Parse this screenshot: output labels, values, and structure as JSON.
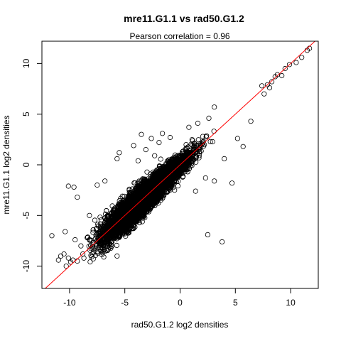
{
  "chart_data": {
    "type": "scatter",
    "title": "mre11.G1.1 vs rad50.G1.2",
    "subtitle_label": "Pearson correlation = ",
    "subtitle_value": "0.96",
    "xlabel": "rad50.G1.2 log2 densities",
    "ylabel": "mre11.G1.1 log2 densities",
    "xlim": [
      -12.5,
      12.5
    ],
    "ylim": [
      -12.2,
      12.2
    ],
    "xticks": [
      -10,
      -5,
      0,
      5,
      10
    ],
    "yticks": [
      -10,
      -5,
      0,
      5,
      10
    ],
    "grid": false,
    "legend": "none",
    "fit_line": {
      "slope": 1.0,
      "intercept": 0.0,
      "color": "#ff0000"
    },
    "point_color": "#000000",
    "outliers": [
      [
        -11.6,
        -7.0
      ],
      [
        -9.3,
        -3.2
      ],
      [
        -10.8,
        -9.0
      ],
      [
        -10.5,
        -8.8
      ],
      [
        -10.1,
        -9.2
      ],
      [
        -9.9,
        -9.6
      ],
      [
        -9.7,
        -9.4
      ],
      [
        -9.3,
        -9.5
      ],
      [
        -11.0,
        -9.4
      ],
      [
        -10.3,
        -10.0
      ],
      [
        -10.4,
        -6.6
      ],
      [
        -9.6,
        -2.2
      ],
      [
        -10.1,
        -2.1
      ],
      [
        -5.7,
        0.6
      ],
      [
        -5.5,
        1.2
      ],
      [
        -3.8,
        0.4
      ],
      [
        -3.1,
        1.5
      ],
      [
        -2.6,
        2.6
      ],
      [
        -1.6,
        3.1
      ],
      [
        -1.9,
        2.2
      ],
      [
        2.5,
        -6.9
      ],
      [
        3.8,
        -7.6
      ],
      [
        1.4,
        -2.6
      ],
      [
        2.3,
        -1.3
      ],
      [
        3.1,
        -1.6
      ],
      [
        4.7,
        -1.8
      ],
      [
        5.7,
        1.8
      ],
      [
        6.4,
        4.3
      ],
      [
        -7.1,
        -6.1
      ],
      [
        -8.2,
        -5.0
      ],
      [
        -8.4,
        -7.2
      ],
      [
        -7.9,
        -8.1
      ],
      [
        -6.5,
        -8.3
      ],
      [
        -6.9,
        -9.1
      ],
      [
        -8.8,
        -8.8
      ],
      [
        -5.7,
        -9.0
      ],
      [
        -0.5,
        -2.5
      ],
      [
        -4.2,
        1.9
      ],
      [
        0.8,
        3.7
      ],
      [
        1.6,
        4.1
      ],
      [
        2.6,
        4.6
      ],
      [
        3.1,
        5.7
      ],
      [
        5.2,
        2.6
      ],
      [
        4.0,
        0.6
      ],
      [
        -9.5,
        -7.4
      ],
      [
        -7.5,
        -2.0
      ],
      [
        -6.8,
        -1.6
      ],
      [
        -2.3,
        0.9
      ],
      [
        -3.5,
        3.0
      ],
      [
        -0.9,
        2.7
      ]
    ],
    "top_points": [
      [
        7.9,
        7.9
      ],
      [
        8.3,
        8.2
      ],
      [
        8.6,
        8.7
      ],
      [
        8.8,
        8.9
      ],
      [
        9.2,
        8.8
      ],
      [
        9.5,
        9.5
      ],
      [
        9.9,
        9.9
      ],
      [
        10.5,
        10.1
      ],
      [
        11.0,
        10.6
      ],
      [
        11.5,
        11.3
      ],
      [
        11.7,
        11.5
      ],
      [
        7.4,
        7.8
      ],
      [
        7.6,
        7.0
      ],
      [
        8.1,
        7.6
      ]
    ],
    "cloud": {
      "n": 7000,
      "seed": 13,
      "x_center": -3.0,
      "x_spread": 3.2,
      "x_range": [
        -9.0,
        7.5
      ],
      "sd_min": 0.5,
      "sd_max": 1.6
    }
  }
}
